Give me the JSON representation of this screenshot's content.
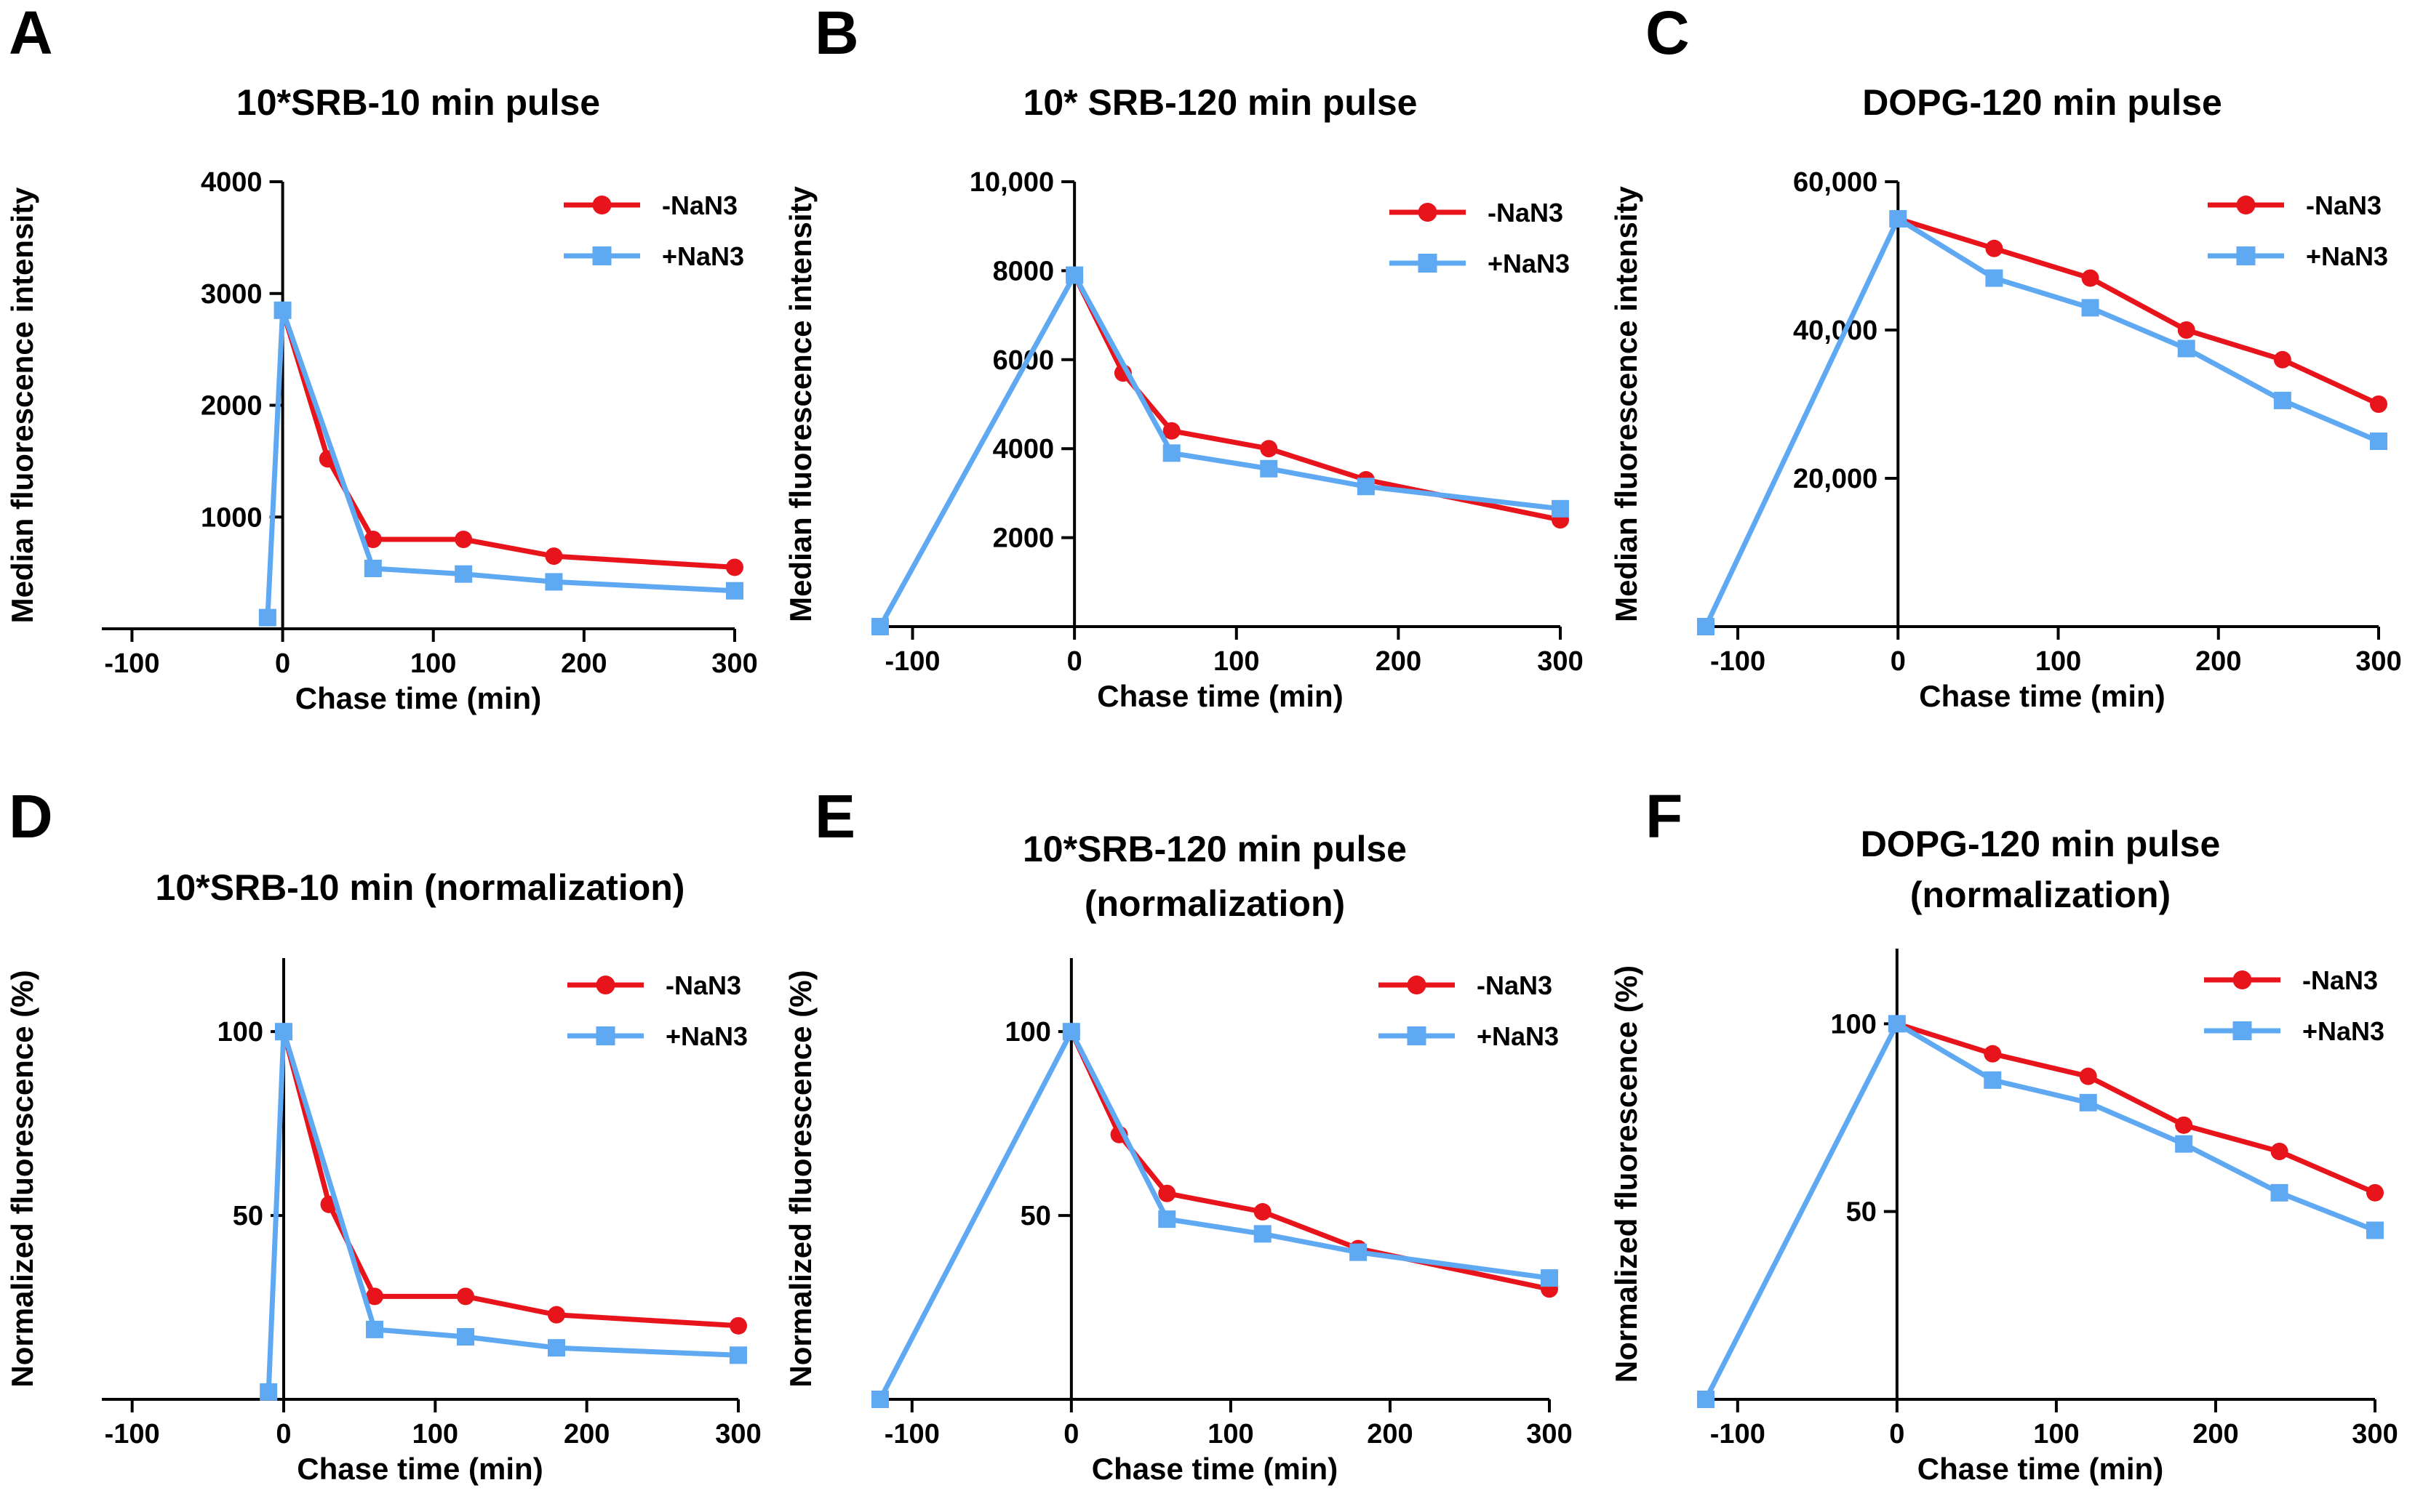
{
  "chart_data": [
    {
      "type": "line",
      "panel": "A",
      "title": [
        "10*SRB-10 min pulse"
      ],
      "xlabel": "Chase time (min)",
      "ylabel": "Median fluorescence intensity",
      "xlim": [
        -120,
        300
      ],
      "ylim": [
        0,
        4000
      ],
      "xticks": [
        -100,
        0,
        100,
        200,
        300
      ],
      "yticks": [
        1000,
        2000,
        3000,
        4000
      ],
      "ytick_labels": [
        "1000",
        "2000",
        "3000",
        "4000"
      ],
      "series": [
        {
          "name": "-NaN3",
          "color": "#e8141b",
          "marker": "circle",
          "x": [
            0,
            30,
            60,
            120,
            180,
            300
          ],
          "y": [
            2850,
            1520,
            800,
            800,
            650,
            550
          ]
        },
        {
          "name": "+NaN3",
          "color": "#5fa8f2",
          "marker": "square",
          "x": [
            -10,
            0,
            60,
            120,
            180,
            300
          ],
          "y": [
            100,
            2850,
            540,
            490,
            420,
            340
          ]
        }
      ]
    },
    {
      "type": "line",
      "panel": "B",
      "title": [
        "10* SRB-120 min pulse"
      ],
      "xlabel": "Chase time (min)",
      "ylabel": "Median fluorescence intensity",
      "xlim": [
        -120,
        300
      ],
      "ylim": [
        0,
        10000
      ],
      "xticks": [
        -100,
        0,
        100,
        200,
        300
      ],
      "yticks": [
        2000,
        4000,
        6000,
        8000,
        10000
      ],
      "ytick_labels": [
        "2000",
        "4000",
        "6000",
        "8000",
        "10,000"
      ],
      "series": [
        {
          "name": "-NaN3",
          "color": "#e8141b",
          "marker": "circle",
          "x": [
            0,
            30,
            60,
            120,
            180,
            300
          ],
          "y": [
            7900,
            5700,
            4400,
            4000,
            3300,
            2400
          ]
        },
        {
          "name": "+NaN3",
          "color": "#5fa8f2",
          "marker": "square",
          "x": [
            -120,
            0,
            60,
            120,
            180,
            300
          ],
          "y": [
            0,
            7900,
            3900,
            3550,
            3150,
            2650
          ]
        }
      ]
    },
    {
      "type": "line",
      "panel": "C",
      "title": [
        "DOPG-120 min pulse"
      ],
      "xlabel": "Chase time (min)",
      "ylabel": "Median fluorescence intensity",
      "xlim": [
        -120,
        300
      ],
      "ylim": [
        0,
        60000
      ],
      "xticks": [
        -100,
        0,
        100,
        200,
        300
      ],
      "yticks": [
        20000,
        40000,
        60000
      ],
      "ytick_labels": [
        "20,000",
        "40,000",
        "60,000"
      ],
      "series": [
        {
          "name": "-NaN3",
          "color": "#e8141b",
          "marker": "circle",
          "x": [
            0,
            60,
            120,
            180,
            240,
            300
          ],
          "y": [
            55000,
            51000,
            47000,
            40000,
            36000,
            30000
          ]
        },
        {
          "name": "+NaN3",
          "color": "#5fa8f2",
          "marker": "square",
          "x": [
            -120,
            0,
            60,
            120,
            180,
            240,
            300
          ],
          "y": [
            0,
            55000,
            47000,
            43000,
            37500,
            30500,
            25000
          ]
        }
      ]
    },
    {
      "type": "line",
      "panel": "D",
      "title": [
        "10*SRB-10 min (normalization)"
      ],
      "xlabel": "Chase time (min)",
      "ylabel": "Normalized fluorescence (%)",
      "xlim": [
        -120,
        300
      ],
      "ylim": [
        0,
        120
      ],
      "xticks": [
        -100,
        0,
        100,
        200,
        300
      ],
      "yticks": [
        50,
        100
      ],
      "ytick_labels": [
        "50",
        "100"
      ],
      "series": [
        {
          "name": "-NaN3",
          "color": "#e8141b",
          "marker": "circle",
          "x": [
            0,
            30,
            60,
            120,
            180,
            300
          ],
          "y": [
            100,
            53,
            28,
            28,
            23,
            20
          ]
        },
        {
          "name": "+NaN3",
          "color": "#5fa8f2",
          "marker": "square",
          "x": [
            -10,
            0,
            60,
            120,
            180,
            300
          ],
          "y": [
            2,
            100,
            19,
            17,
            14,
            12
          ]
        }
      ]
    },
    {
      "type": "line",
      "panel": "E",
      "title": [
        "10*SRB-120 min pulse",
        "(normalization)"
      ],
      "xlabel": "Chase time (min)",
      "ylabel": "Normalized fluorescence (%)",
      "xlim": [
        -120,
        300
      ],
      "ylim": [
        0,
        120
      ],
      "xticks": [
        -100,
        0,
        100,
        200,
        300
      ],
      "yticks": [
        50,
        100
      ],
      "ytick_labels": [
        "50",
        "100"
      ],
      "series": [
        {
          "name": "-NaN3",
          "color": "#e8141b",
          "marker": "circle",
          "x": [
            0,
            30,
            60,
            120,
            180,
            300
          ],
          "y": [
            100,
            72,
            56,
            51,
            41,
            30
          ]
        },
        {
          "name": "+NaN3",
          "color": "#5fa8f2",
          "marker": "square",
          "x": [
            -120,
            0,
            60,
            120,
            180,
            300
          ],
          "y": [
            0,
            100,
            49,
            45,
            40,
            33
          ]
        }
      ]
    },
    {
      "type": "line",
      "panel": "F",
      "title": [
        "DOPG-120 min pulse",
        "(normalization)"
      ],
      "xlabel": "Chase time (min)",
      "ylabel": "Normalized fluorescence (%)",
      "xlim": [
        -120,
        300
      ],
      "ylim": [
        0,
        120
      ],
      "xticks": [
        -100,
        0,
        100,
        200,
        300
      ],
      "yticks": [
        50,
        100
      ],
      "ytick_labels": [
        "50",
        "100"
      ],
      "series": [
        {
          "name": "-NaN3",
          "color": "#e8141b",
          "marker": "circle",
          "x": [
            0,
            60,
            120,
            180,
            240,
            300
          ],
          "y": [
            100,
            92,
            86,
            73,
            66,
            55
          ]
        },
        {
          "name": "+NaN3",
          "color": "#5fa8f2",
          "marker": "square",
          "x": [
            -120,
            0,
            60,
            120,
            180,
            240,
            300
          ],
          "y": [
            0,
            100,
            85,
            79,
            68,
            55,
            45
          ]
        }
      ]
    }
  ]
}
